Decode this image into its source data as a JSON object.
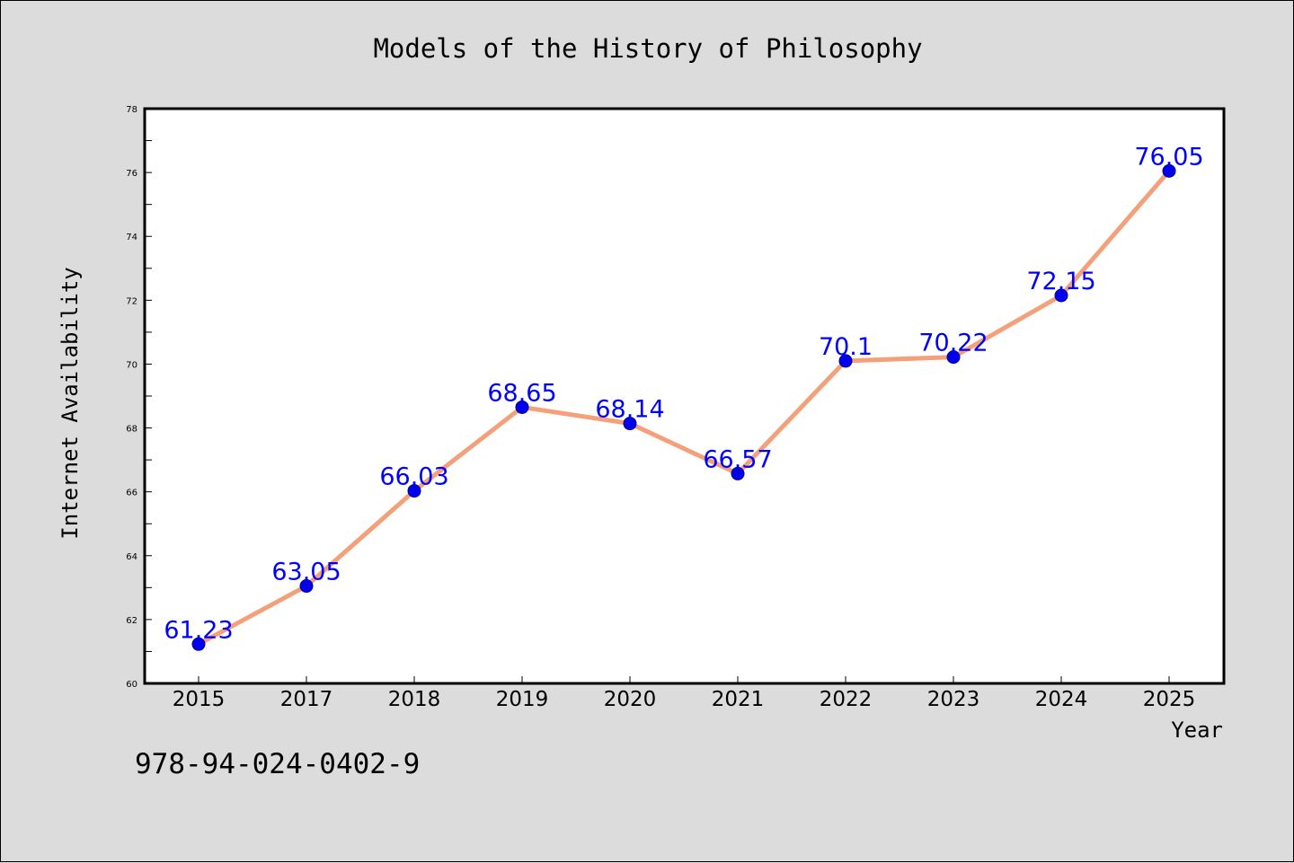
{
  "chart_data": {
    "type": "line",
    "title": "Models of the History of Philosophy",
    "xlabel": "Year",
    "ylabel": "Internet Availability",
    "categories": [
      "2015",
      "2017",
      "2018",
      "2019",
      "2020",
      "2021",
      "2022",
      "2023",
      "2024",
      "2025"
    ],
    "values": [
      61.23,
      63.05,
      66.03,
      68.65,
      68.14,
      66.57,
      70.1,
      70.22,
      72.15,
      76.05
    ],
    "data_labels": [
      "61.23",
      "63.05",
      "66.03",
      "68.65",
      "68.14",
      "66.57",
      "70.1",
      "70.22",
      "72.15",
      "76.05"
    ],
    "ylim": [
      60,
      78
    ],
    "yticks": [
      60,
      62,
      64,
      66,
      68,
      70,
      72,
      74,
      76,
      78
    ],
    "grid": false,
    "line_color": "#f4a07a",
    "marker_color": "#0000ee",
    "label_color": "#0000ff"
  },
  "annotation": {
    "isbn": "978-94-024-0402-9"
  }
}
